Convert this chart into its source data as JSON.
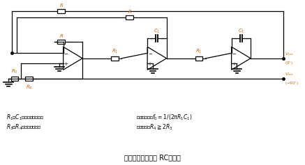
{
  "bg_color": "#ffffff",
  "line_color": "#000000",
  "label_color": "#cc6600",
  "title": "図４　状態変数形 RC発振器",
  "cap1": "$R_1$，$C_1$：周波数設定素子",
  "cap2": "発振周波数：$f_0 = 1/(2\\pi R_1 C_1)$",
  "cap3": "$R_3$，$R_4$：振幅制御素子",
  "cap4": "発振条件：$R_4 \\geqq 2R_3$"
}
